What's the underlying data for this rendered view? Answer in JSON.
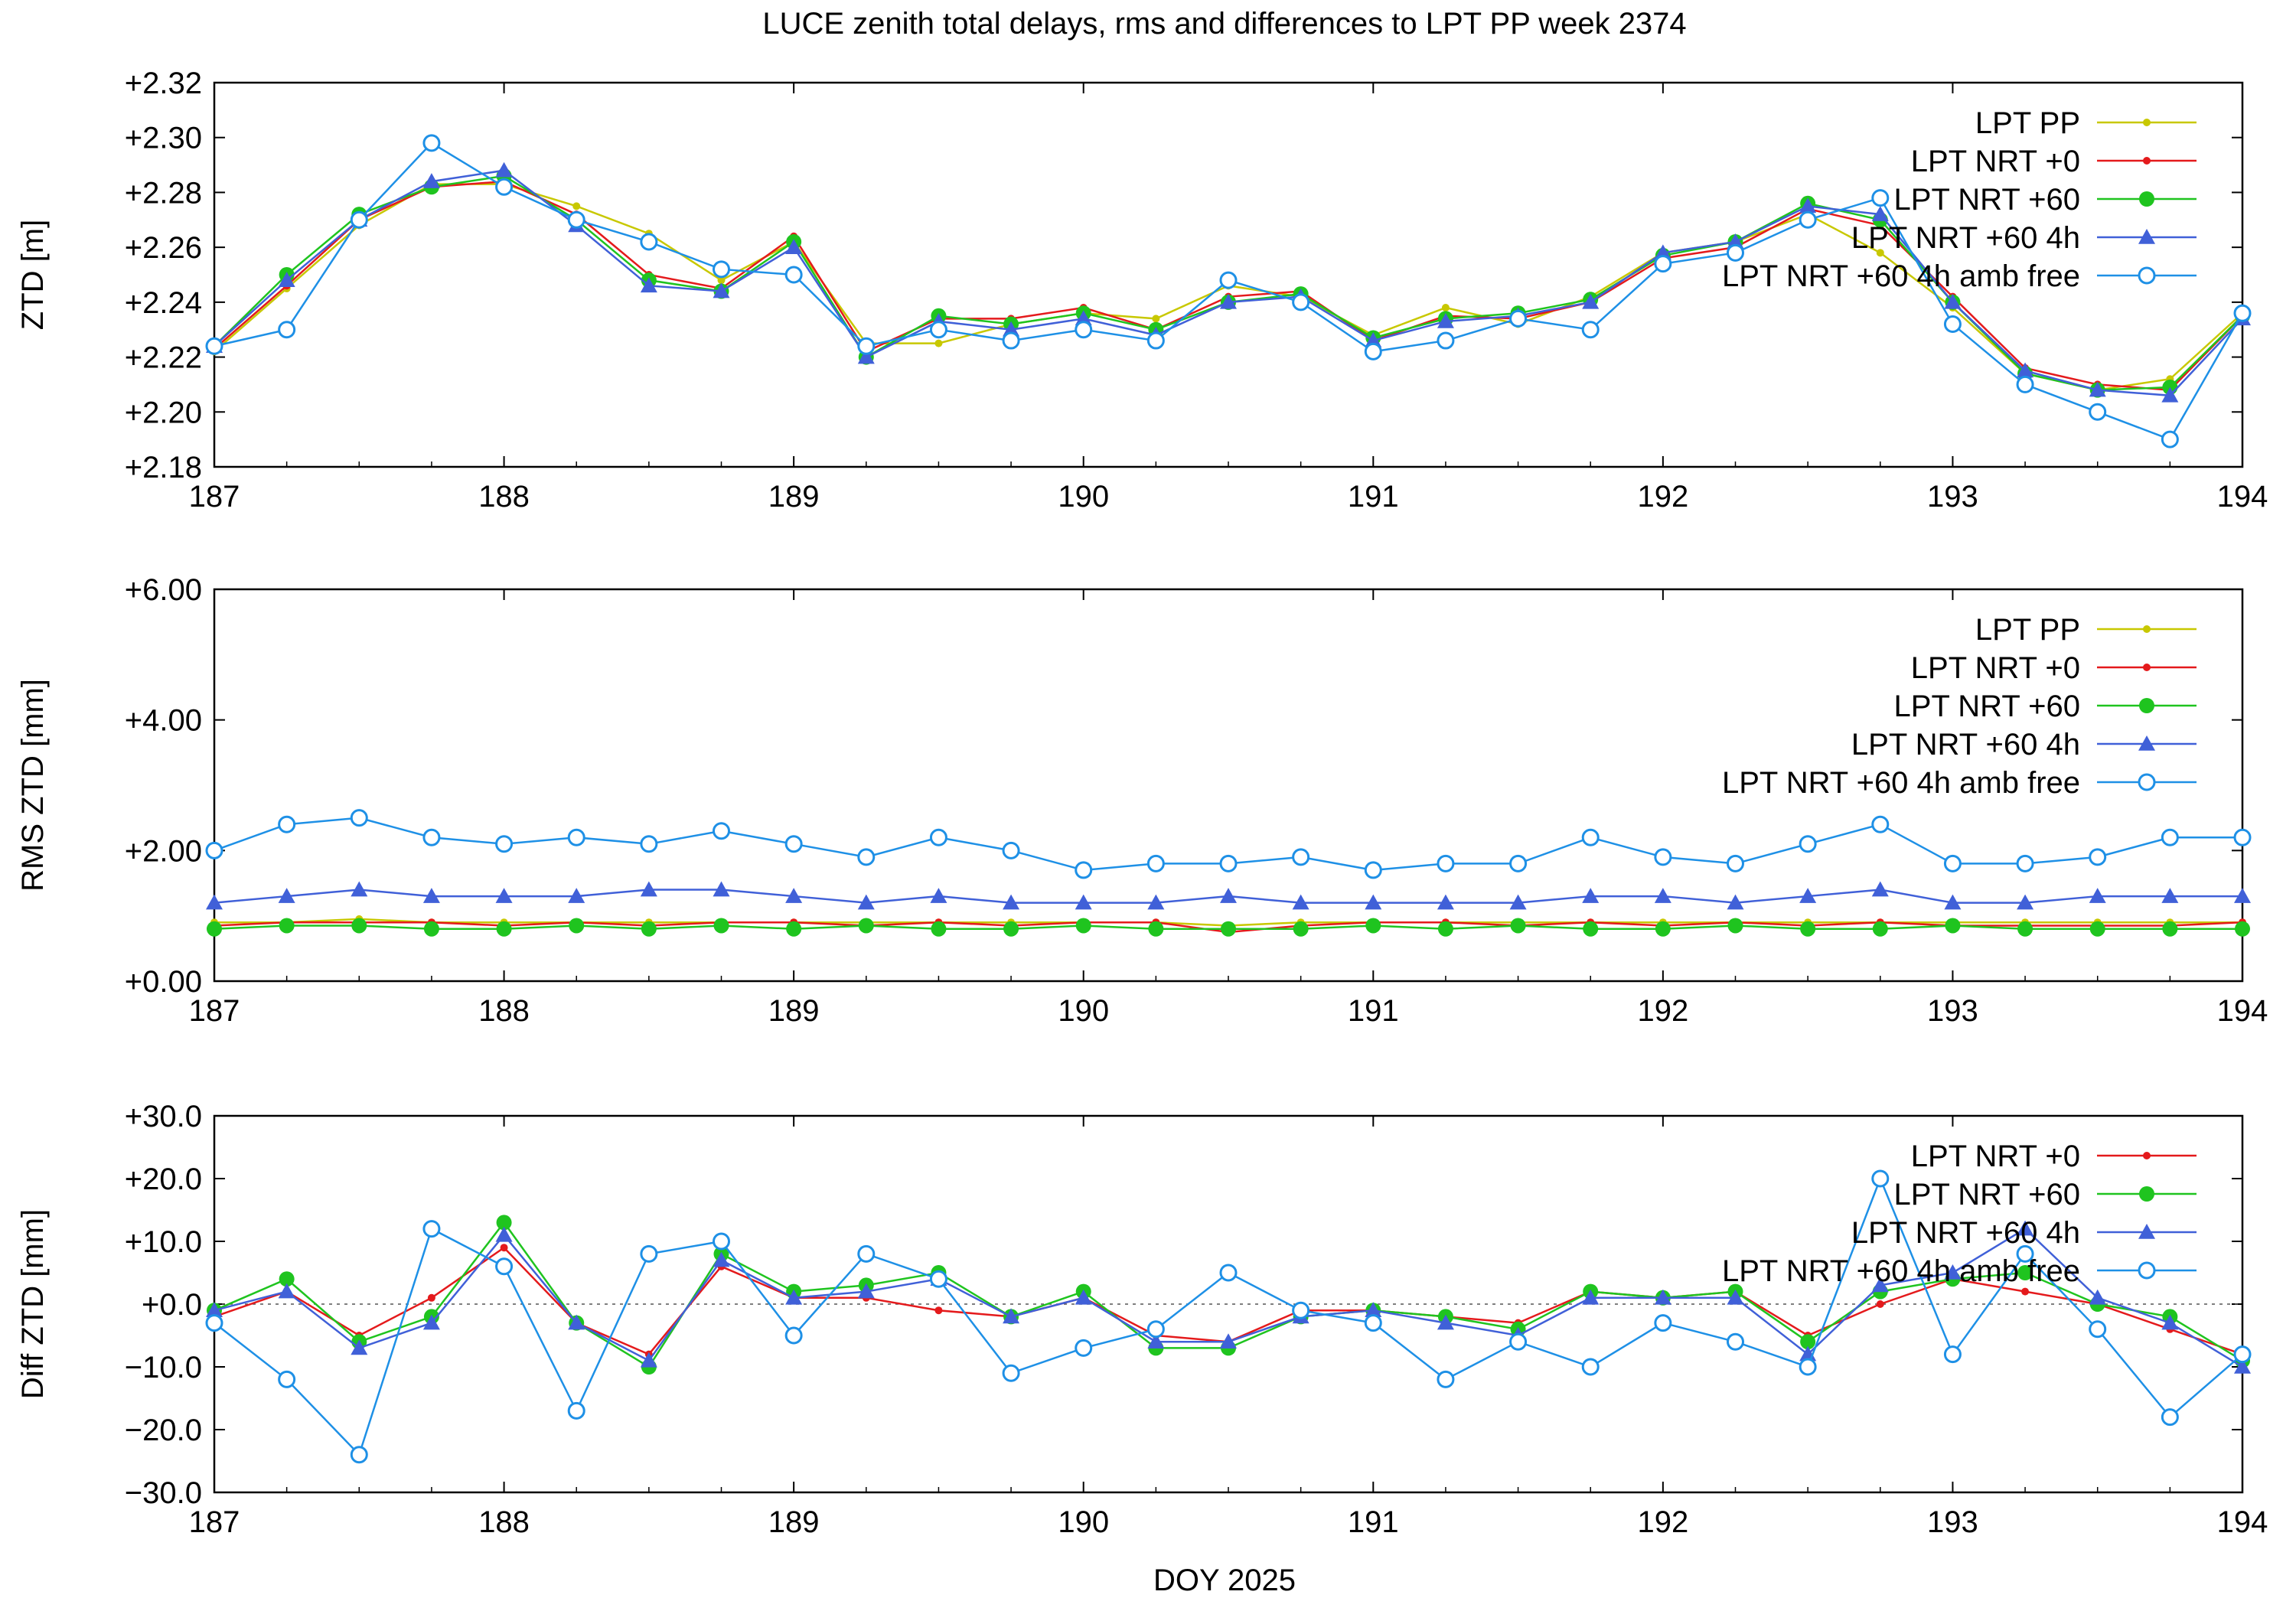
{
  "title": "LUCE zenith total delays, rms and differences to LPT PP week 2374",
  "xlabel": "DOY 2025",
  "colors": {
    "lpt_pp": "#c8c800",
    "lpt_nrt_0": "#e41a1c",
    "lpt_nrt_60": "#1fc41f",
    "lpt_nrt_60_4h": "#4060d8",
    "lpt_nrt_60_4h_amb_free": "#1e90e6"
  },
  "chart_data": [
    {
      "type": "line",
      "ylabel": "ZTD [m]",
      "xlim": [
        187,
        194
      ],
      "ylim": [
        2.18,
        2.32
      ],
      "xticks": [
        "187",
        "188",
        "189",
        "190",
        "191",
        "192",
        "193",
        "194"
      ],
      "yticks": [
        "+2.18",
        "+2.20",
        "+2.22",
        "+2.24",
        "+2.26",
        "+2.28",
        "+2.30",
        "+2.32"
      ],
      "grid": false,
      "legend": "top-right",
      "x": [
        187.0,
        187.25,
        187.5,
        187.75,
        188.0,
        188.25,
        188.5,
        188.75,
        189.0,
        189.25,
        189.5,
        189.75,
        190.0,
        190.25,
        190.5,
        190.75,
        191.0,
        191.25,
        191.5,
        191.75,
        192.0,
        192.25,
        192.5,
        192.75,
        193.0,
        193.25,
        193.5,
        193.75,
        194.0
      ],
      "series": [
        {
          "name": "LPT PP",
          "color_key": "lpt_pp",
          "marker": "dot",
          "values": [
            2.222,
            2.245,
            2.268,
            2.283,
            2.283,
            2.275,
            2.265,
            2.248,
            2.262,
            2.225,
            2.225,
            2.232,
            2.236,
            2.234,
            2.246,
            2.242,
            2.228,
            2.238,
            2.232,
            2.242,
            2.258,
            2.262,
            2.272,
            2.258,
            2.238,
            2.214,
            2.208,
            2.212,
            2.236
          ]
        },
        {
          "name": "LPT NRT +0",
          "color_key": "lpt_nrt_0",
          "marker": "dot",
          "values": [
            2.223,
            2.246,
            2.27,
            2.282,
            2.284,
            2.272,
            2.25,
            2.245,
            2.264,
            2.222,
            2.234,
            2.234,
            2.238,
            2.23,
            2.242,
            2.244,
            2.226,
            2.235,
            2.234,
            2.24,
            2.256,
            2.26,
            2.274,
            2.268,
            2.242,
            2.216,
            2.21,
            2.208,
            2.235
          ]
        },
        {
          "name": "LPT NRT +60",
          "color_key": "lpt_nrt_60",
          "marker": "circle",
          "values": [
            2.224,
            2.25,
            2.272,
            2.282,
            2.286,
            2.27,
            2.248,
            2.244,
            2.262,
            2.22,
            2.235,
            2.232,
            2.236,
            2.23,
            2.24,
            2.243,
            2.227,
            2.234,
            2.236,
            2.241,
            2.257,
            2.262,
            2.276,
            2.27,
            2.24,
            2.214,
            2.208,
            2.209,
            2.235
          ]
        },
        {
          "name": "LPT NRT +60 4h",
          "color_key": "lpt_nrt_60_4h",
          "marker": "triangle",
          "values": [
            2.224,
            2.248,
            2.27,
            2.284,
            2.288,
            2.268,
            2.246,
            2.244,
            2.26,
            2.22,
            2.233,
            2.23,
            2.234,
            2.228,
            2.24,
            2.242,
            2.226,
            2.233,
            2.235,
            2.24,
            2.258,
            2.262,
            2.275,
            2.272,
            2.24,
            2.215,
            2.208,
            2.206,
            2.234
          ]
        },
        {
          "name": "LPT NRT +60 4h amb free",
          "color_key": "lpt_nrt_60_4h_amb_free",
          "marker": "open-circle",
          "values": [
            2.224,
            2.23,
            2.27,
            2.298,
            2.282,
            2.27,
            2.262,
            2.252,
            2.25,
            2.224,
            2.23,
            2.226,
            2.23,
            2.226,
            2.248,
            2.24,
            2.222,
            2.226,
            2.234,
            2.23,
            2.254,
            2.258,
            2.27,
            2.278,
            2.232,
            2.21,
            2.2,
            2.19,
            2.236
          ]
        }
      ]
    },
    {
      "type": "line",
      "ylabel": "RMS ZTD [mm]",
      "xlim": [
        187,
        194
      ],
      "ylim": [
        0,
        6
      ],
      "xticks": [
        "187",
        "188",
        "189",
        "190",
        "191",
        "192",
        "193",
        "194"
      ],
      "yticks": [
        "+0.00",
        "+2.00",
        "+4.00",
        "+6.00"
      ],
      "grid": false,
      "legend": "top-right",
      "x": [
        187.0,
        187.25,
        187.5,
        187.75,
        188.0,
        188.25,
        188.5,
        188.75,
        189.0,
        189.25,
        189.5,
        189.75,
        190.0,
        190.25,
        190.5,
        190.75,
        191.0,
        191.25,
        191.5,
        191.75,
        192.0,
        192.25,
        192.5,
        192.75,
        193.0,
        193.25,
        193.5,
        193.75,
        194.0
      ],
      "series": [
        {
          "name": "LPT PP",
          "color_key": "lpt_pp",
          "marker": "dot",
          "values": [
            0.9,
            0.9,
            0.95,
            0.9,
            0.9,
            0.9,
            0.9,
            0.9,
            0.9,
            0.9,
            0.9,
            0.9,
            0.9,
            0.9,
            0.85,
            0.9,
            0.9,
            0.9,
            0.9,
            0.9,
            0.9,
            0.9,
            0.9,
            0.9,
            0.9,
            0.9,
            0.9,
            0.9,
            0.9
          ]
        },
        {
          "name": "LPT NRT +0",
          "color_key": "lpt_nrt_0",
          "marker": "dot",
          "values": [
            0.85,
            0.9,
            0.9,
            0.9,
            0.85,
            0.9,
            0.85,
            0.9,
            0.9,
            0.85,
            0.9,
            0.85,
            0.9,
            0.9,
            0.75,
            0.85,
            0.9,
            0.9,
            0.85,
            0.9,
            0.85,
            0.9,
            0.85,
            0.9,
            0.85,
            0.85,
            0.85,
            0.85,
            0.9
          ]
        },
        {
          "name": "LPT NRT +60",
          "color_key": "lpt_nrt_60",
          "marker": "circle",
          "values": [
            0.8,
            0.85,
            0.85,
            0.8,
            0.8,
            0.85,
            0.8,
            0.85,
            0.8,
            0.85,
            0.8,
            0.8,
            0.85,
            0.8,
            0.8,
            0.8,
            0.85,
            0.8,
            0.85,
            0.8,
            0.8,
            0.85,
            0.8,
            0.8,
            0.85,
            0.8,
            0.8,
            0.8,
            0.8
          ]
        },
        {
          "name": "LPT NRT +60 4h",
          "color_key": "lpt_nrt_60_4h",
          "marker": "triangle",
          "values": [
            1.2,
            1.3,
            1.4,
            1.3,
            1.3,
            1.3,
            1.4,
            1.4,
            1.3,
            1.2,
            1.3,
            1.2,
            1.2,
            1.2,
            1.3,
            1.2,
            1.2,
            1.2,
            1.2,
            1.3,
            1.3,
            1.2,
            1.3,
            1.4,
            1.2,
            1.2,
            1.3,
            1.3,
            1.3
          ]
        },
        {
          "name": "LPT NRT +60 4h amb free",
          "color_key": "lpt_nrt_60_4h_amb_free",
          "marker": "open-circle",
          "values": [
            2.0,
            2.4,
            2.5,
            2.2,
            2.1,
            2.2,
            2.1,
            2.3,
            2.1,
            1.9,
            2.2,
            2.0,
            1.7,
            1.8,
            1.8,
            1.9,
            1.7,
            1.8,
            1.8,
            2.2,
            1.9,
            1.8,
            2.1,
            2.4,
            1.8,
            1.8,
            1.9,
            2.2,
            2.2
          ]
        }
      ]
    },
    {
      "type": "line",
      "ylabel": "Diff ZTD [mm]",
      "xlim": [
        187,
        194
      ],
      "ylim": [
        -30,
        30
      ],
      "xticks": [
        "187",
        "188",
        "189",
        "190",
        "191",
        "192",
        "193",
        "194"
      ],
      "yticks": [
        "−30.0",
        "−20.0",
        "−10.0",
        "+0.0",
        "+10.0",
        "+20.0",
        "+30.0"
      ],
      "zero_line": true,
      "grid": false,
      "legend": "top-right",
      "x": [
        187.0,
        187.25,
        187.5,
        187.75,
        188.0,
        188.25,
        188.5,
        188.75,
        189.0,
        189.25,
        189.5,
        189.75,
        190.0,
        190.25,
        190.5,
        190.75,
        191.0,
        191.25,
        191.5,
        191.75,
        192.0,
        192.25,
        192.5,
        192.75,
        193.0,
        193.25,
        193.5,
        193.75,
        194.0
      ],
      "series": [
        {
          "name": "LPT NRT +0",
          "color_key": "lpt_nrt_0",
          "marker": "dot",
          "values": [
            -2,
            2,
            -5,
            1,
            9,
            -3,
            -8,
            6,
            1,
            1,
            -1,
            -2,
            1,
            -5,
            -6,
            -1,
            -1,
            -2,
            -3,
            2,
            1,
            2,
            -5,
            0,
            4,
            2,
            0,
            -4,
            -8
          ]
        },
        {
          "name": "LPT NRT +60",
          "color_key": "lpt_nrt_60",
          "marker": "circle",
          "values": [
            -1,
            4,
            -6,
            -2,
            13,
            -3,
            -10,
            8,
            2,
            3,
            5,
            -2,
            2,
            -7,
            -7,
            -2,
            -1,
            -2,
            -4,
            2,
            1,
            2,
            -6,
            2,
            4,
            5,
            0,
            -2,
            -9
          ]
        },
        {
          "name": "LPT NRT +60 4h",
          "color_key": "lpt_nrt_60_4h",
          "marker": "triangle",
          "values": [
            -1,
            2,
            -7,
            -3,
            11,
            -3,
            -9,
            7,
            1,
            2,
            4,
            -2,
            1,
            -6,
            -6,
            -2,
            -1,
            -3,
            -5,
            1,
            1,
            1,
            -8,
            3,
            5,
            12,
            1,
            -3,
            -10
          ]
        },
        {
          "name": "LPT NRT +60 4h amb free",
          "color_key": "lpt_nrt_60_4h_amb_free",
          "marker": "open-circle",
          "values": [
            -3,
            -12,
            -24,
            12,
            6,
            -17,
            8,
            10,
            -5,
            8,
            4,
            -11,
            -7,
            -4,
            5,
            -1,
            -3,
            -12,
            -6,
            -10,
            -3,
            -6,
            -10,
            20,
            -8,
            8,
            -4,
            -18,
            -8
          ]
        }
      ]
    }
  ]
}
